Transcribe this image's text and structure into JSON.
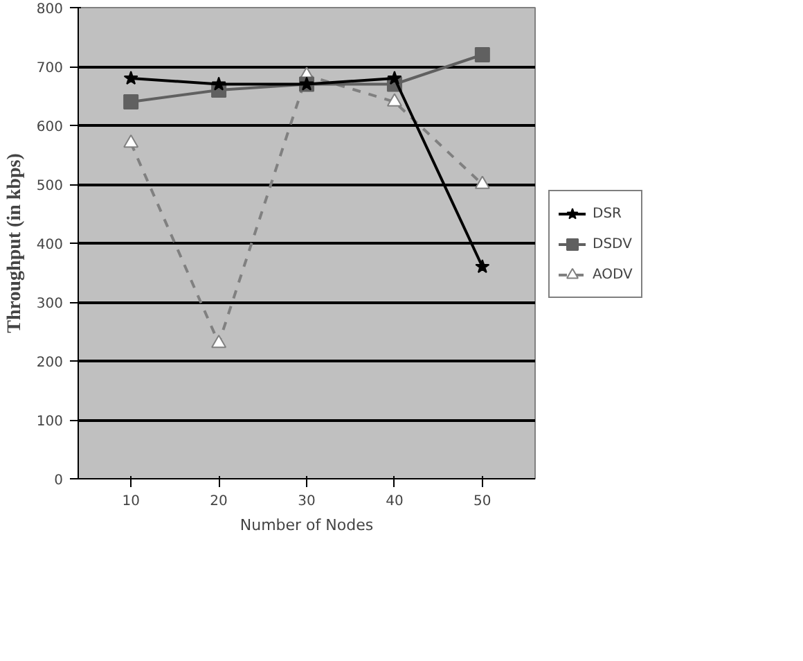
{
  "chart_data": {
    "type": "line",
    "xlabel": "Number of Nodes",
    "ylabel": "Throughput (in kbps)",
    "categories": [
      "10",
      "20",
      "30",
      "40",
      "50"
    ],
    "series": [
      {
        "name": "DSR",
        "color": "#000000",
        "marker": "star",
        "line_style": "solid",
        "values": [
          680,
          670,
          670,
          680,
          360
        ]
      },
      {
        "name": "DSDV",
        "color": "#606060",
        "marker": "square",
        "line_style": "solid",
        "values": [
          640,
          660,
          670,
          670,
          720
        ]
      },
      {
        "name": "AODV",
        "color": "#808080",
        "marker": "triangle",
        "line_style": "dashed",
        "values": [
          570,
          230,
          685,
          640,
          500
        ]
      }
    ],
    "ylim": [
      0,
      800
    ],
    "yticks": [
      0,
      100,
      200,
      300,
      400,
      500,
      600,
      700,
      800
    ],
    "grid": "y",
    "legend": "right"
  }
}
